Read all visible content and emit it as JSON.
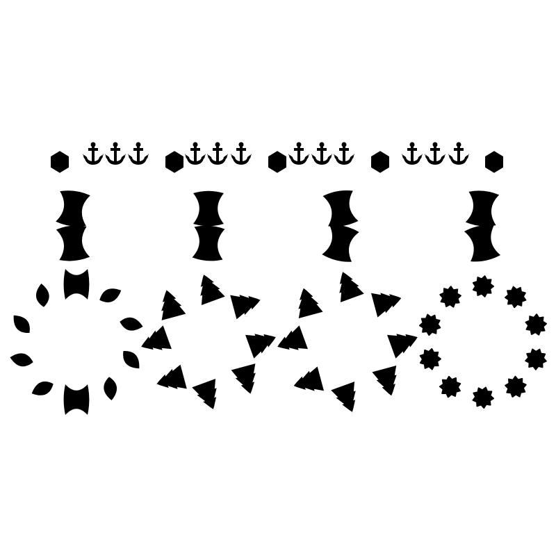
{
  "colors": {
    "background": "#ffffff",
    "shape_fill": "#000000"
  },
  "composition": {
    "top_row": [
      "hexagon-icon",
      "anchor-icon",
      "anchor-icon",
      "anchor-icon",
      "hexagon-icon",
      "anchor-icon",
      "anchor-icon",
      "anchor-icon",
      "hexagon-icon",
      "anchor-icon",
      "anchor-icon",
      "anchor-icon",
      "hexagon-icon",
      "anchor-icon",
      "anchor-icon",
      "anchor-icon",
      "hexagon-icon"
    ],
    "columns": [
      {
        "stack_motif": "bowtie-icon",
        "stack_count": 2,
        "ring_motif": "teardrop-bowtie-mix",
        "ring_count": 10
      },
      {
        "stack_motif": "bowtie-icon",
        "stack_count": 2,
        "ring_motif": "pagoda-icon",
        "ring_count": 8
      },
      {
        "stack_motif": "bowtie-icon",
        "stack_count": 2,
        "ring_motif": "pagoda-icon",
        "ring_count": 8
      },
      {
        "stack_motif": "bowtie-icon",
        "stack_count": 2,
        "ring_motif": "blob-icon",
        "ring_count": 10
      }
    ]
  }
}
